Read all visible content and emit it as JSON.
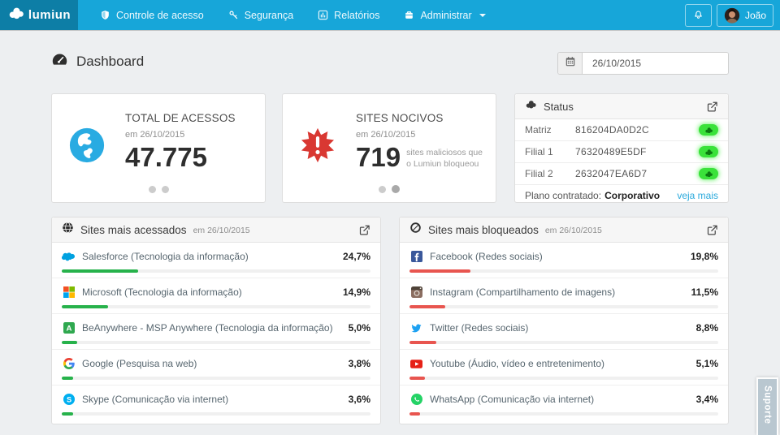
{
  "nav": {
    "logo_text": "lumiun",
    "items": [
      {
        "label": "Controle de acesso",
        "icon": "shield-icon"
      },
      {
        "label": "Segurança",
        "icon": "key-icon"
      },
      {
        "label": "Relatórios",
        "icon": "chart-icon"
      },
      {
        "label": "Administrar",
        "icon": "briefcase-icon",
        "has_dropdown": true
      }
    ],
    "user": {
      "name": "João"
    }
  },
  "header": {
    "title": "Dashboard",
    "date_value": "26/10/2015"
  },
  "cards": {
    "acessos": {
      "title": "TOTAL DE ACESSOS",
      "subtitle": "em 26/10/2015",
      "value": "47.775"
    },
    "nocivos": {
      "title": "SITES NOCIVOS",
      "subtitle": "em 26/10/2015",
      "value": "719",
      "note": "sites maliciosos que o Lumiun bloqueou"
    }
  },
  "status": {
    "title": "Status",
    "rows": [
      {
        "label": "Matriz",
        "code": "816204DA0D2C",
        "state": "online"
      },
      {
        "label": "Filial 1",
        "code": "76320489E5DF",
        "state": "online"
      },
      {
        "label": "Filial 2",
        "code": "2632047EA6D7",
        "state": "online"
      }
    ],
    "footer_label": "Plano contratado:",
    "footer_value": "Corporativo",
    "link_label": "veja mais",
    "badge_color": "#3ae23a"
  },
  "accessed": {
    "title": "Sites mais acessados",
    "subtitle": "em 26/10/2015",
    "bar_color": "#27b24b",
    "items": [
      {
        "icon": "salesforce",
        "name": "Salesforce (Tecnologia da informação)",
        "pct": "24,7%",
        "pct_value": 24.7
      },
      {
        "icon": "microsoft",
        "name": "Microsoft (Tecnologia da informação)",
        "pct": "14,9%",
        "pct_value": 14.9
      },
      {
        "icon": "beanywhere",
        "name": "BeAnywhere - MSP Anywhere (Tecnologia da informação)",
        "pct": "5,0%",
        "pct_value": 5.0
      },
      {
        "icon": "google",
        "name": "Google (Pesquisa na web)",
        "pct": "3,8%",
        "pct_value": 3.8
      },
      {
        "icon": "skype",
        "name": "Skype (Comunicação via internet)",
        "pct": "3,6%",
        "pct_value": 3.6
      }
    ]
  },
  "blocked": {
    "title": "Sites mais bloqueados",
    "subtitle": "em 26/10/2015",
    "bar_color": "#e8554f",
    "items": [
      {
        "icon": "facebook",
        "name": "Facebook (Redes sociais)",
        "pct": "19,8%",
        "pct_value": 19.8
      },
      {
        "icon": "instagram",
        "name": "Instagram (Compartilhamento de imagens)",
        "pct": "11,5%",
        "pct_value": 11.5
      },
      {
        "icon": "twitter",
        "name": "Twitter (Redes sociais)",
        "pct": "8,8%",
        "pct_value": 8.8
      },
      {
        "icon": "youtube",
        "name": "Youtube (Áudio, vídeo e entretenimento)",
        "pct": "5,1%",
        "pct_value": 5.1
      },
      {
        "icon": "whatsapp",
        "name": "WhatsApp (Comunicação via internet)",
        "pct": "3,4%",
        "pct_value": 3.4
      }
    ]
  },
  "support_tab_label": "Suporte",
  "colors": {
    "navbar": "#17a6d9",
    "navbar_logo": "#0d7ea6",
    "link": "#29a9dc",
    "accessed_bar": "#27b24b",
    "blocked_bar": "#e8554f"
  }
}
